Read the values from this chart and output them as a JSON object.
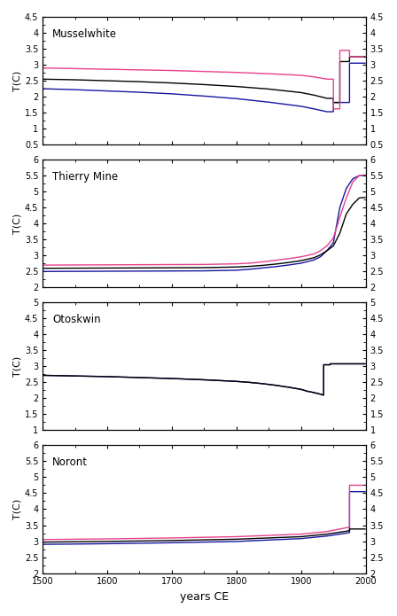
{
  "panels": [
    {
      "title": "Musselwhite",
      "ylim": [
        0.5,
        4.5
      ],
      "yticks": [
        0.5,
        1.0,
        1.5,
        2.0,
        2.5,
        3.0,
        3.5,
        4.0,
        4.5
      ],
      "ytick_labels": [
        "0.5",
        "1",
        "1.5",
        "2",
        "2.5",
        "3",
        "3.5",
        "4",
        "4.5"
      ],
      "lines": {
        "pink": {
          "x": [
            1500,
            1550,
            1600,
            1650,
            1700,
            1750,
            1800,
            1850,
            1900,
            1920,
            1940,
            1950,
            1950,
            1960,
            1960,
            1975,
            1975,
            2000
          ],
          "y": [
            2.9,
            2.88,
            2.86,
            2.84,
            2.82,
            2.79,
            2.76,
            2.72,
            2.67,
            2.62,
            2.55,
            2.55,
            1.62,
            1.62,
            3.45,
            3.45,
            3.25,
            3.25
          ]
        },
        "black": {
          "x": [
            1500,
            1550,
            1600,
            1650,
            1700,
            1750,
            1800,
            1850,
            1900,
            1920,
            1940,
            1950,
            1950,
            1960,
            1960,
            1975,
            1975,
            2000
          ],
          "y": [
            2.55,
            2.53,
            2.5,
            2.47,
            2.43,
            2.38,
            2.32,
            2.24,
            2.13,
            2.05,
            1.95,
            1.95,
            1.82,
            1.82,
            3.1,
            3.1,
            3.25,
            3.25
          ]
        },
        "blue": {
          "x": [
            1500,
            1550,
            1600,
            1650,
            1700,
            1750,
            1800,
            1850,
            1900,
            1920,
            1940,
            1950,
            1950,
            1975,
            1975,
            2000
          ],
          "y": [
            2.25,
            2.22,
            2.18,
            2.14,
            2.09,
            2.02,
            1.94,
            1.83,
            1.7,
            1.62,
            1.53,
            1.53,
            1.82,
            1.82,
            3.05,
            3.05
          ]
        }
      }
    },
    {
      "title": "Thierry Mine",
      "ylim": [
        2.0,
        6.0
      ],
      "yticks": [
        2.0,
        2.5,
        3.0,
        3.5,
        4.0,
        4.5,
        5.0,
        5.5,
        6.0
      ],
      "ytick_labels": [
        "2",
        "2.5",
        "3",
        "3.5",
        "4",
        "4.5",
        "5",
        "5.5",
        "6"
      ],
      "lines": {
        "pink": {
          "x": [
            1500,
            1750,
            1800,
            1820,
            1840,
            1860,
            1880,
            1900,
            1920,
            1930,
            1940,
            1950,
            1960,
            1970,
            1980,
            1990,
            2000
          ],
          "y": [
            2.7,
            2.72,
            2.74,
            2.76,
            2.8,
            2.85,
            2.9,
            2.96,
            3.05,
            3.15,
            3.3,
            3.55,
            4.2,
            4.8,
            5.3,
            5.5,
            5.52
          ]
        },
        "black": {
          "x": [
            1500,
            1750,
            1800,
            1820,
            1840,
            1860,
            1880,
            1900,
            1920,
            1930,
            1940,
            1950,
            1960,
            1970,
            1980,
            1990,
            2000
          ],
          "y": [
            2.6,
            2.62,
            2.64,
            2.66,
            2.69,
            2.73,
            2.78,
            2.84,
            2.93,
            3.02,
            3.15,
            3.3,
            3.7,
            4.3,
            4.6,
            4.8,
            4.82
          ]
        },
        "blue": {
          "x": [
            1500,
            1750,
            1800,
            1820,
            1840,
            1860,
            1880,
            1900,
            1920,
            1930,
            1940,
            1950,
            1960,
            1970,
            1980,
            1990,
            2000
          ],
          "y": [
            2.5,
            2.52,
            2.54,
            2.57,
            2.61,
            2.65,
            2.7,
            2.76,
            2.86,
            2.96,
            3.15,
            3.4,
            4.5,
            5.1,
            5.4,
            5.5,
            5.52
          ]
        }
      }
    },
    {
      "title": "Otoskwin",
      "ylim": [
        1.0,
        5.0
      ],
      "yticks": [
        1.0,
        1.5,
        2.0,
        2.5,
        3.0,
        3.5,
        4.0,
        4.5,
        5.0
      ],
      "ytick_labels": [
        "1",
        "1.5",
        "2",
        "2.5",
        "3",
        "3.5",
        "4",
        "4.5",
        "5"
      ],
      "lines": {
        "pink": null,
        "black": {
          "x": [
            1500,
            1600,
            1700,
            1750,
            1800,
            1820,
            1840,
            1860,
            1880,
            1900,
            1910,
            1920,
            1930,
            1935,
            1935,
            1945,
            1945,
            2000
          ],
          "y": [
            2.72,
            2.68,
            2.62,
            2.58,
            2.53,
            2.5,
            2.46,
            2.41,
            2.35,
            2.28,
            2.22,
            2.18,
            2.13,
            2.1,
            3.05,
            3.05,
            3.08,
            3.08
          ]
        },
        "blue": {
          "x": [
            1500,
            1600,
            1700,
            1750,
            1800,
            1820,
            1840,
            1860,
            1880,
            1900,
            1910,
            1920,
            1930,
            1935,
            1935,
            1945,
            1945,
            2000
          ],
          "y": [
            2.72,
            2.68,
            2.62,
            2.58,
            2.53,
            2.5,
            2.46,
            2.41,
            2.35,
            2.28,
            2.22,
            2.18,
            2.13,
            2.1,
            3.05,
            3.05,
            3.08,
            3.08
          ]
        }
      }
    },
    {
      "title": "Noront",
      "ylim": [
        2.0,
        6.0
      ],
      "yticks": [
        2.0,
        2.5,
        3.0,
        3.5,
        4.0,
        4.5,
        5.0,
        5.5,
        6.0
      ],
      "ytick_labels": [
        "2",
        "2.5",
        "3",
        "3.5",
        "4",
        "4.5",
        "5",
        "5.5",
        "6"
      ],
      "lines": {
        "pink": {
          "x": [
            1500,
            1600,
            1700,
            1800,
            1900,
            1940,
            1960,
            1970,
            1975,
            1975,
            2000
          ],
          "y": [
            3.05,
            3.07,
            3.1,
            3.14,
            3.22,
            3.3,
            3.38,
            3.42,
            3.44,
            4.75,
            4.75
          ]
        },
        "black": {
          "x": [
            1500,
            1600,
            1700,
            1800,
            1900,
            1940,
            1960,
            1970,
            1975,
            1975,
            2000
          ],
          "y": [
            2.97,
            2.99,
            3.02,
            3.06,
            3.14,
            3.22,
            3.28,
            3.31,
            3.33,
            3.38,
            3.38
          ]
        },
        "blue": {
          "x": [
            1500,
            1600,
            1700,
            1800,
            1900,
            1940,
            1960,
            1970,
            1975,
            1975,
            2000
          ],
          "y": [
            2.9,
            2.92,
            2.95,
            2.99,
            3.08,
            3.16,
            3.22,
            3.25,
            3.27,
            4.55,
            4.55
          ]
        }
      }
    }
  ],
  "xlim": [
    1500,
    2000
  ],
  "xticks": [
    1500,
    1600,
    1700,
    1800,
    1900,
    2000
  ],
  "xlabel": "years CE",
  "ylabel": "T(C)",
  "colors": {
    "pink": "#E8408A",
    "black": "#000000",
    "blue": "#1515A0"
  },
  "linewidth": 1.0,
  "bg_color": "#FFFFFF"
}
